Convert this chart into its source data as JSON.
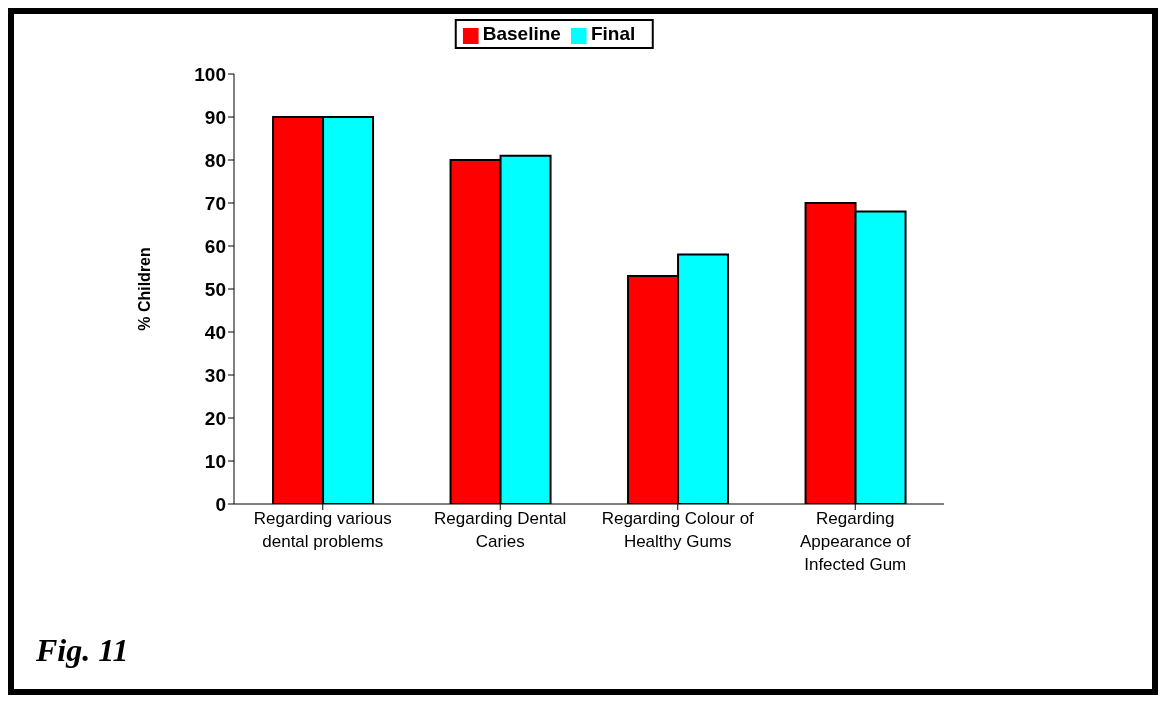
{
  "chart_data": {
    "type": "bar",
    "ylabel": "% Children",
    "categories": [
      "Regarding various dental problems",
      "Regarding Dental Caries",
      "Regarding Colour of Healthy Gums",
      "Regarding Appearance of Infected Gum"
    ],
    "series": [
      {
        "name": "Baseline",
        "color": "#ff0000",
        "values": [
          90,
          80,
          53,
          70
        ]
      },
      {
        "name": "Final",
        "color": "#00ffff",
        "values": [
          90,
          81,
          58,
          68
        ]
      }
    ],
    "ylim": [
      0,
      100
    ],
    "yticks": [
      0,
      10,
      20,
      30,
      40,
      50,
      60,
      70,
      80,
      90,
      100
    ],
    "grid": false,
    "legend": "top",
    "annotations": [
      "Fig. 11"
    ]
  }
}
